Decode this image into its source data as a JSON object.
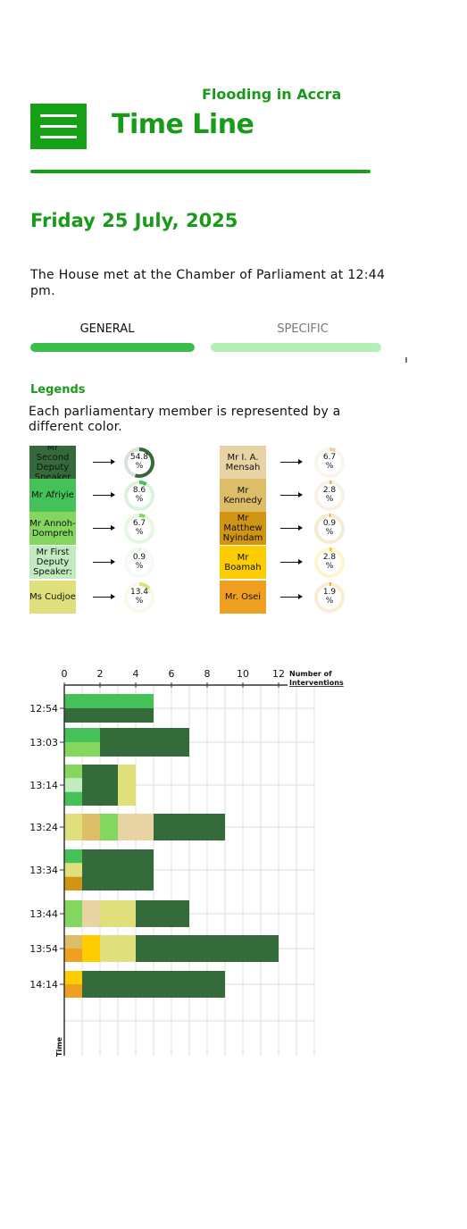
{
  "header": {
    "subtitle": "Flooding in Accra",
    "title": "Time Line",
    "menu_icon": "hamburger-menu-icon"
  },
  "date": "Friday 25 July, 2025",
  "intro": "The House met at the Chamber of Parliament at 12:44 pm.",
  "tabs": [
    {
      "label": "GENERAL",
      "active": true
    },
    {
      "label": "SPECIFIC",
      "active": false
    }
  ],
  "colors": {
    "brand": "#15a015",
    "tab_active": "#3cbd4c",
    "tab_inactive": "#b5efb7"
  },
  "legends": {
    "title": "Legends",
    "description": "Each parliamentary member is represented by a different color.",
    "members": [
      {
        "name": "Mr Second Deputy Speaker",
        "color": "#356b3b",
        "percent": "54.8",
        "unit": "%",
        "fraction": 0.548
      },
      {
        "name": "Mr Afriyie",
        "color": "#44c157",
        "percent": "8.6",
        "unit": "%",
        "fraction": 0.086
      },
      {
        "name": "Mr Annoh-Dompreh",
        "color": "#84d65e",
        "percent": "6.7",
        "unit": "%",
        "fraction": 0.067
      },
      {
        "name": "Mr First Deputy Speaker:",
        "color": "#c2ecc0",
        "percent": "0.9",
        "unit": "%",
        "fraction": 0.009
      },
      {
        "name": "Ms Cudjoe",
        "color": "#dfe07b",
        "percent": "13.4",
        "unit": "%",
        "fraction": 0.134
      },
      {
        "name": "Mr I. A. Mensah",
        "color": "#e8d3a3",
        "percent": "6.7",
        "unit": "%",
        "fraction": 0.067
      },
      {
        "name": "Mr Kennedy",
        "color": "#dcbd68",
        "percent": "2.8",
        "unit": "%",
        "fraction": 0.028
      },
      {
        "name": "Mr Matthew Nyindam",
        "color": "#d19515",
        "percent": "0.9",
        "unit": "%",
        "fraction": 0.009
      },
      {
        "name": "Mr Boamah",
        "color": "#fdcc01",
        "percent": "2.8",
        "unit": "%",
        "fraction": 0.028
      },
      {
        "name": "Mr. Osei",
        "color": "#f0a020",
        "percent": "1.9",
        "unit": "%",
        "fraction": 0.019
      }
    ]
  },
  "chart_data": {
    "type": "bar",
    "orientation": "horizontal",
    "xlabel": "Number of Interventions",
    "ylabel": "Time",
    "xlim": [
      0,
      14
    ],
    "xticks": [
      0,
      2,
      4,
      6,
      8,
      10,
      12
    ],
    "grid": true,
    "categories": [
      "12:54",
      "13:03",
      "13:14",
      "13:24",
      "13:34",
      "13:44",
      "13:54",
      "14:14"
    ],
    "segments": [
      [
        {
          "member": "Mr Afriyie",
          "start": 0,
          "end": 5,
          "row": 0,
          "rows": 2
        },
        {
          "member": "Mr Second Deputy Speaker",
          "start": 0,
          "end": 5,
          "row": 1,
          "rows": 2
        }
      ],
      [
        {
          "member": "Mr Afriyie",
          "start": 0,
          "end": 2,
          "row": 0,
          "rows": 2
        },
        {
          "member": "Mr Annoh-Dompreh",
          "start": 0,
          "end": 2,
          "row": 1,
          "rows": 2
        },
        {
          "member": "Mr Second Deputy Speaker",
          "start": 2,
          "end": 7,
          "row": 0,
          "rows": 1
        }
      ],
      [
        {
          "member": "Mr Annoh-Dompreh",
          "start": 0,
          "end": 1,
          "row": 0,
          "rows": 3
        },
        {
          "member": "Mr First Deputy Speaker:",
          "start": 0,
          "end": 1,
          "row": 1,
          "rows": 3
        },
        {
          "member": "Mr Afriyie",
          "start": 0,
          "end": 1,
          "row": 2,
          "rows": 3
        },
        {
          "member": "Mr Second Deputy Speaker",
          "start": 1,
          "end": 3,
          "row": 0,
          "rows": 1
        },
        {
          "member": "Ms Cudjoe",
          "start": 3,
          "end": 4,
          "row": 0,
          "rows": 1
        }
      ],
      [
        {
          "member": "Ms Cudjoe",
          "start": 0,
          "end": 1,
          "row": 0,
          "rows": 1
        },
        {
          "member": "Mr Kennedy",
          "start": 1,
          "end": 2,
          "row": 0,
          "rows": 1
        },
        {
          "member": "Mr Annoh-Dompreh",
          "start": 2,
          "end": 3,
          "row": 0,
          "rows": 1
        },
        {
          "member": "Mr I. A. Mensah",
          "start": 3,
          "end": 5,
          "row": 0,
          "rows": 1
        },
        {
          "member": "Mr Second Deputy Speaker",
          "start": 5,
          "end": 9,
          "row": 0,
          "rows": 1
        }
      ],
      [
        {
          "member": "Mr Afriyie",
          "start": 0,
          "end": 1,
          "row": 0,
          "rows": 3
        },
        {
          "member": "Ms Cudjoe",
          "start": 0,
          "end": 1,
          "row": 1,
          "rows": 3
        },
        {
          "member": "Mr Matthew Nyindam",
          "start": 0,
          "end": 1,
          "row": 2,
          "rows": 3
        },
        {
          "member": "Mr Second Deputy Speaker",
          "start": 1,
          "end": 5,
          "row": 0,
          "rows": 1
        }
      ],
      [
        {
          "member": "Mr Annoh-Dompreh",
          "start": 0,
          "end": 1,
          "row": 0,
          "rows": 1
        },
        {
          "member": "Mr I. A. Mensah",
          "start": 1,
          "end": 2,
          "row": 0,
          "rows": 1
        },
        {
          "member": "Ms Cudjoe",
          "start": 2,
          "end": 4,
          "row": 0,
          "rows": 1
        },
        {
          "member": "Mr Second Deputy Speaker",
          "start": 4,
          "end": 7,
          "row": 0,
          "rows": 1
        }
      ],
      [
        {
          "member": "Mr Kennedy",
          "start": 0,
          "end": 1,
          "row": 0,
          "rows": 2
        },
        {
          "member": "Mr. Osei",
          "start": 0,
          "end": 1,
          "row": 1,
          "rows": 2
        },
        {
          "member": "Mr Boamah",
          "start": 1,
          "end": 2,
          "row": 0,
          "rows": 1
        },
        {
          "member": "Ms Cudjoe",
          "start": 2,
          "end": 4,
          "row": 0,
          "rows": 1
        },
        {
          "member": "Mr Second Deputy Speaker",
          "start": 4,
          "end": 12,
          "row": 0,
          "rows": 1
        }
      ],
      [
        {
          "member": "Mr Boamah",
          "start": 0,
          "end": 1,
          "row": 0,
          "rows": 2
        },
        {
          "member": "Mr. Osei",
          "start": 0,
          "end": 1,
          "row": 1,
          "rows": 2
        },
        {
          "member": "Mr Second Deputy Speaker",
          "start": 1,
          "end": 9,
          "row": 0,
          "rows": 1
        }
      ]
    ]
  }
}
